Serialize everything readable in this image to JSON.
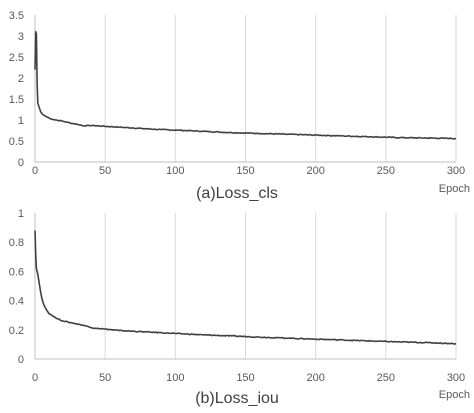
{
  "chart_data": [
    {
      "type": "line",
      "title": "(a)Loss_cls",
      "xlabel": "Epoch",
      "ylabel": "",
      "xlim": [
        0,
        300
      ],
      "ylim": [
        0,
        3.5
      ],
      "x_ticks": [
        0,
        50,
        100,
        150,
        200,
        250,
        300
      ],
      "y_ticks": [
        0,
        0.5,
        1,
        1.5,
        2,
        2.5,
        3,
        3.5
      ],
      "y_tick_labels": [
        "0",
        "0.5",
        "1",
        "1.5",
        "2",
        "2.5",
        "3",
        "3.5"
      ],
      "grid": "vertical",
      "legend": "none",
      "line_color": "#404040",
      "series": [
        {
          "x": [
            0,
            0.5,
            1,
            1.5,
            2,
            3,
            4,
            5,
            6,
            8,
            10,
            12,
            15,
            20,
            25,
            30,
            35,
            40,
            50,
            60,
            70,
            80,
            90,
            100,
            120,
            140,
            160,
            180,
            200,
            220,
            240,
            260,
            280,
            300
          ],
          "values": [
            2.2,
            3.1,
            3.05,
            1.9,
            1.4,
            1.3,
            1.2,
            1.15,
            1.12,
            1.08,
            1.05,
            1.02,
            1.0,
            0.97,
            0.93,
            0.9,
            0.86,
            0.87,
            0.85,
            0.83,
            0.81,
            0.79,
            0.77,
            0.76,
            0.73,
            0.7,
            0.68,
            0.66,
            0.64,
            0.62,
            0.6,
            0.58,
            0.57,
            0.56
          ]
        }
      ]
    },
    {
      "type": "line",
      "title": "(b)Loss_iou",
      "xlabel": "Epoch",
      "ylabel": "",
      "xlim": [
        0,
        300
      ],
      "ylim": [
        0,
        1
      ],
      "x_ticks": [
        0,
        50,
        100,
        150,
        200,
        250,
        300
      ],
      "y_ticks": [
        0,
        0.2,
        0.4,
        0.6,
        0.8,
        1
      ],
      "y_tick_labels": [
        "0",
        "0.2",
        "0.4",
        "0.6",
        "0.8",
        "1"
      ],
      "grid": "vertical",
      "legend": "none",
      "line_color": "#404040",
      "series": [
        {
          "x": [
            0,
            0.5,
            1,
            2,
            3,
            4,
            5,
            6,
            8,
            10,
            12,
            15,
            20,
            25,
            30,
            35,
            40,
            45,
            50,
            60,
            70,
            80,
            90,
            100,
            120,
            140,
            160,
            180,
            200,
            220,
            240,
            260,
            280,
            300
          ],
          "values": [
            0.88,
            0.72,
            0.62,
            0.58,
            0.52,
            0.46,
            0.41,
            0.38,
            0.34,
            0.31,
            0.3,
            0.28,
            0.26,
            0.25,
            0.24,
            0.23,
            0.215,
            0.21,
            0.205,
            0.195,
            0.19,
            0.185,
            0.18,
            0.175,
            0.165,
            0.158,
            0.15,
            0.143,
            0.136,
            0.13,
            0.123,
            0.117,
            0.112,
            0.105
          ]
        }
      ]
    }
  ]
}
